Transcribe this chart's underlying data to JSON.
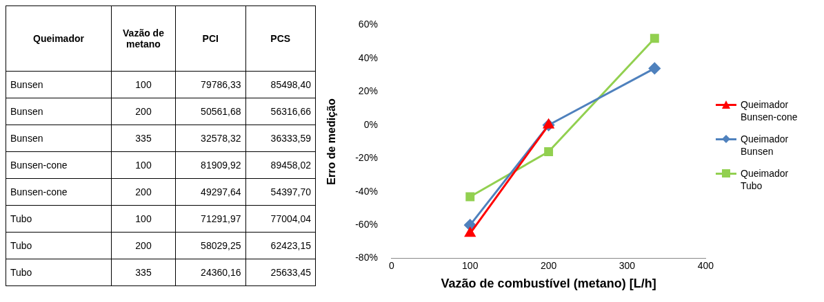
{
  "chart_data": [
    {
      "type": "other",
      "categories": [
        "Queimador",
        "Vazão de metano",
        "PCI",
        "PCS"
      ],
      "annotations": [
        "Bunsen",
        "100",
        "79786,33",
        "85498,40",
        "Bunsen",
        "200",
        "50561,68",
        "56316,66",
        "Bunsen",
        "335",
        "32578,32",
        "36333,59",
        "Bunsen-cone",
        "100",
        "81909,92",
        "89458,02",
        "Bunsen-cone",
        "200",
        "49297,64",
        "54397,70",
        "Tubo",
        "100",
        "71291,97",
        "77004,04",
        "Tubo",
        "200",
        "58029,25",
        "62423,15",
        "Tubo",
        "335",
        "24360,16",
        "25633,45"
      ]
    },
    {
      "type": "line",
      "xlabel": "Vazão de combustível (metano) [L/h]",
      "ylabel": "Erro de medição",
      "xlim": [
        0,
        400
      ],
      "xticks": [
        0,
        100,
        200,
        300,
        400
      ],
      "ylim": [
        -80,
        60
      ],
      "yticks": [
        {
          "value": -80,
          "label": "-80%"
        },
        {
          "value": -60,
          "label": "-60%"
        },
        {
          "value": -40,
          "label": "-40%"
        },
        {
          "value": -20,
          "label": "-20%"
        },
        {
          "value": 0,
          "label": "0%"
        },
        {
          "value": 20,
          "label": "20%"
        },
        {
          "value": 40,
          "label": "40%"
        },
        {
          "value": 60,
          "label": "60%"
        }
      ],
      "grid": false,
      "legend": "right",
      "series": [
        {
          "name": "Queimador Bunsen-cone",
          "color": "#ff0000",
          "marker": "triangle",
          "x": [
            100,
            200
          ],
          "values": [
            -65,
            0
          ]
        },
        {
          "name": "Queimador Bunsen",
          "color": "#4f81bd",
          "marker": "diamond",
          "x": [
            100,
            200,
            335
          ],
          "values": [
            -60,
            0,
            34
          ]
        },
        {
          "name": "Queimador Tubo",
          "color": "#92d050",
          "marker": "square",
          "x": [
            100,
            200,
            335
          ],
          "values": [
            -43,
            -16,
            52
          ]
        }
      ]
    }
  ]
}
